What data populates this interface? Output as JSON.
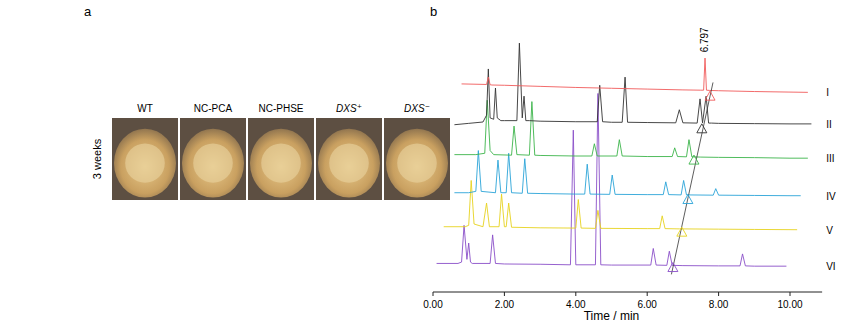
{
  "panel_labels": [
    "a",
    "b"
  ],
  "panel_a": {
    "row_label": "3 weeks",
    "images": [
      "WT",
      "NC-PCA",
      "NC-PHSE",
      "DXS⁺",
      "DXS⁻"
    ]
  },
  "chart_data": {
    "type": "line",
    "x_label": "Time / min",
    "xlim": [
      0,
      10.9
    ],
    "xticks": [
      {
        "value": 0,
        "label": "0.00"
      },
      {
        "value": 2,
        "label": "2.00"
      },
      {
        "value": 4,
        "label": "4.00"
      },
      {
        "value": 6,
        "label": "6.00"
      },
      {
        "value": 8,
        "label": "8.00"
      },
      {
        "value": 10,
        "label": "10.00"
      }
    ],
    "ylim": [
      0,
      100
    ],
    "yticks": [],
    "grid": false,
    "tick_labels": "x",
    "annotations": [
      {
        "text": "6.797",
        "x": 7.62,
        "y": 87
      }
    ],
    "series": [
      {
        "name": "I",
        "color": "#f05a5a",
        "marker": "triangle",
        "x": [
          0.8,
          1.5,
          1.55,
          1.6,
          1.65,
          2.0,
          3.0,
          4.0,
          5.0,
          6.0,
          7.0,
          7.5,
          7.58,
          7.62,
          7.66,
          7.75,
          8.0,
          9.0,
          10.0,
          10.5
        ],
        "values": [
          76.5,
          76.3,
          79,
          76.2,
          76.1,
          76.0,
          75.6,
          75.2,
          74.9,
          74.6,
          74.3,
          74.2,
          74.2,
          86,
          74.2,
          74.1,
          74.0,
          73.7,
          73.5,
          73.4
        ],
        "peak": [
          7.76,
          72
        ]
      },
      {
        "name": "II",
        "color": "#333333",
        "marker": "triangle",
        "x": [
          0.6,
          1.0,
          1.4,
          1.5,
          1.55,
          1.6,
          1.7,
          1.75,
          1.8,
          1.9,
          2.0,
          2.35,
          2.42,
          2.5,
          2.55,
          2.6,
          2.7,
          3.0,
          4.0,
          4.6,
          4.67,
          4.75,
          5.0,
          5.3,
          5.38,
          5.45,
          6.0,
          6.8,
          6.9,
          7.0,
          7.4,
          7.48,
          7.55,
          7.65,
          7.72,
          7.8,
          8.0,
          9.0,
          10.0,
          10.6
        ],
        "values": [
          61.5,
          62,
          62.5,
          65,
          82,
          64,
          63.5,
          75,
          64,
          63,
          63,
          63,
          91.5,
          64,
          72,
          63,
          63,
          62.8,
          62.6,
          62.6,
          76,
          62.6,
          62.4,
          62.4,
          79,
          62.4,
          62.3,
          62.2,
          67,
          62.2,
          62.1,
          71,
          62.2,
          72,
          62.1,
          62.1,
          62.0,
          61.9,
          61.8,
          61.8
        ],
        "peak": [
          7.53,
          60
        ]
      },
      {
        "name": "III",
        "color": "#3cb44b",
        "marker": "triangle",
        "x": [
          0.6,
          1.2,
          1.45,
          1.52,
          1.6,
          1.7,
          2.2,
          2.27,
          2.35,
          2.7,
          2.77,
          2.85,
          3.0,
          4.0,
          4.45,
          4.52,
          4.6,
          5.15,
          5.22,
          5.3,
          6.0,
          6.7,
          6.77,
          6.85,
          7.1,
          7.17,
          7.25,
          7.5,
          8.0,
          9.0,
          10.0,
          10.5
        ],
        "values": [
          50.5,
          50.5,
          51,
          70.5,
          52,
          50.5,
          50.3,
          61,
          50.5,
          50.3,
          70,
          50.3,
          50.2,
          50,
          50,
          54.5,
          50,
          50,
          56,
          50,
          49.8,
          49.8,
          53,
          49.8,
          49.7,
          56,
          49.7,
          49.6,
          49.5,
          49.4,
          49.2,
          49.2
        ],
        "peak": [
          7.31,
          48.5
        ]
      },
      {
        "name": "IV",
        "color": "#2aa4d8",
        "marker": "triangle",
        "x": [
          0.6,
          1.0,
          1.2,
          1.27,
          1.35,
          1.75,
          1.82,
          1.9,
          2.05,
          2.12,
          2.2,
          2.5,
          2.57,
          2.65,
          3.0,
          4.0,
          4.25,
          4.32,
          4.4,
          4.95,
          5.02,
          5.1,
          6.0,
          6.45,
          6.52,
          6.6,
          6.95,
          7.02,
          7.1,
          7.85,
          7.92,
          8.0,
          9.0,
          10.0,
          10.3
        ],
        "values": [
          36.5,
          36.5,
          37,
          52,
          37,
          36.5,
          48.5,
          36.5,
          36.5,
          51,
          36.5,
          36.3,
          49,
          36.3,
          36.2,
          36,
          36,
          47,
          36,
          35.9,
          43,
          35.9,
          35.8,
          35.8,
          40.5,
          35.8,
          35.7,
          41,
          35.7,
          35.6,
          38,
          35.6,
          35.5,
          35.4,
          35.4
        ],
        "peak": [
          7.14,
          34
        ]
      },
      {
        "name": "V",
        "color": "#e6d21e",
        "marker": "triangle",
        "x": [
          0.3,
          0.9,
          1.0,
          1.07,
          1.15,
          1.4,
          1.5,
          1.58,
          1.85,
          1.92,
          2.0,
          2.05,
          2.12,
          2.2,
          3.0,
          4.0,
          4.07,
          4.15,
          4.55,
          4.62,
          4.7,
          6.0,
          6.35,
          6.42,
          6.5,
          6.9,
          7.0,
          8.0,
          9.0,
          10.2
        ],
        "values": [
          24,
          24,
          24.5,
          41,
          25,
          24,
          32.7,
          24,
          24,
          36,
          24,
          24,
          32.7,
          23.8,
          23.6,
          23.5,
          34,
          23.5,
          23.4,
          30,
          23.4,
          23.3,
          23.3,
          28,
          23.3,
          23.2,
          23.2,
          23.1,
          23,
          22.9
        ],
        "peak": [
          6.97,
          22
        ]
      },
      {
        "name": "VI",
        "color": "#8a4fc8",
        "marker": "triangle",
        "x": [
          0.1,
          0.7,
          0.8,
          0.87,
          0.95,
          1.0,
          1.05,
          1.1,
          1.6,
          1.67,
          1.75,
          2.0,
          3.0,
          3.85,
          3.93,
          4.0,
          4.55,
          4.62,
          4.7,
          5.0,
          6.1,
          6.17,
          6.25,
          6.55,
          6.62,
          6.7,
          7.0,
          8.0,
          8.6,
          8.67,
          8.75,
          9.0,
          9.9
        ],
        "values": [
          10.5,
          10.5,
          11,
          24.5,
          12,
          18,
          11,
          10.5,
          10.5,
          21,
          10.5,
          10.3,
          10.2,
          10,
          59.5,
          10,
          10,
          73,
          10,
          9.9,
          9.9,
          16,
          9.9,
          9.8,
          15,
          9.8,
          9.7,
          9.6,
          9.6,
          14,
          9.6,
          9.5,
          9.5
        ],
        "peak": [
          6.72,
          9
        ]
      }
    ]
  }
}
